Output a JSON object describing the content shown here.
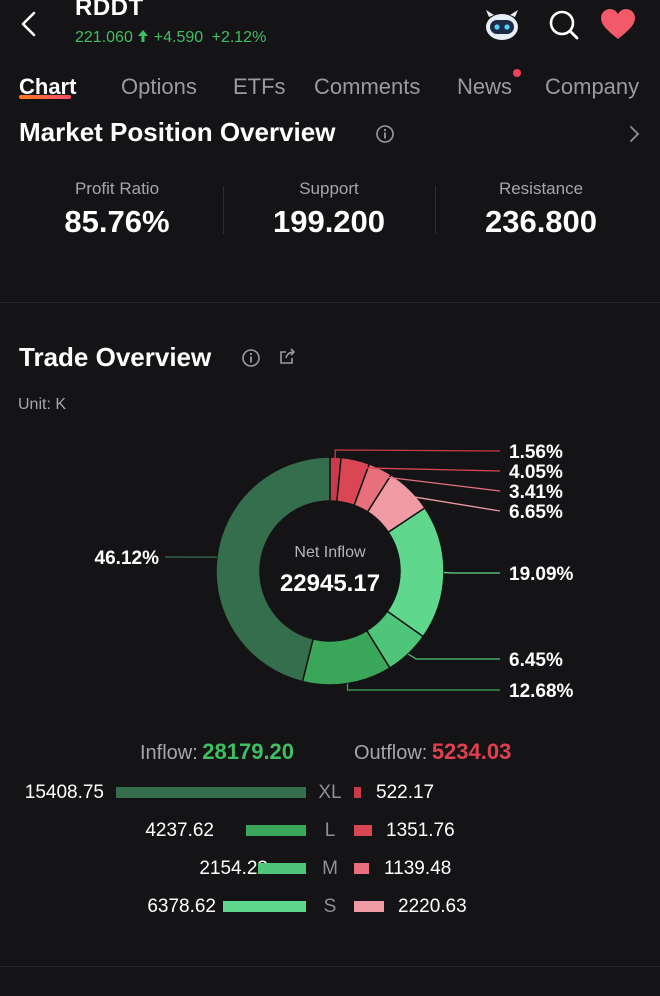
{
  "header": {
    "ticker": "RDDT",
    "price": "221.060",
    "change": "+4.590",
    "change_pct": "+2.12%",
    "colors": {
      "up": "#3fbf62",
      "heart": "#f25a6a"
    },
    "icons": [
      "back-arrow-icon",
      "up-arrow-icon",
      "robot-assistant-icon",
      "search-icon",
      "heart-icon"
    ]
  },
  "tabs": [
    {
      "label": "Chart",
      "active": true
    },
    {
      "label": "Options",
      "active": false
    },
    {
      "label": "ETFs",
      "active": false
    },
    {
      "label": "Comments",
      "active": false
    },
    {
      "label": "News",
      "active": false,
      "has_dot": true
    },
    {
      "label": "Company",
      "active": false
    }
  ],
  "market_position": {
    "title": "Market Position Overview",
    "stats": [
      {
        "label": "Profit Ratio",
        "value": "85.76%"
      },
      {
        "label": "Support",
        "value": "199.200"
      },
      {
        "label": "Resistance",
        "value": "236.800"
      }
    ]
  },
  "trade_overview": {
    "title": "Trade Overview",
    "unit": "Unit: K",
    "center_label": "Net Inflow",
    "center_value": "22945.17"
  },
  "chart_data": {
    "type": "pie",
    "slices": [
      {
        "label": "1.56%",
        "value": 1.56,
        "color": "#c93b48"
      },
      {
        "label": "4.05%",
        "value": 4.05,
        "color": "#d94654"
      },
      {
        "label": "3.41%",
        "value": 3.41,
        "color": "#e8707c"
      },
      {
        "label": "6.65%",
        "value": 6.65,
        "color": "#f09aa3"
      },
      {
        "label": "19.09%",
        "value": 19.09,
        "color": "#5fd88e"
      },
      {
        "label": "6.45%",
        "value": 6.45,
        "color": "#4fc57a"
      },
      {
        "label": "12.68%",
        "value": 12.68,
        "color": "#3aa65a"
      },
      {
        "label": "46.12%",
        "value": 46.12,
        "color": "#356e4c"
      }
    ]
  },
  "flows": {
    "inflow_label": "Inflow:",
    "inflow_value": "28179.20",
    "outflow_label": "Outflow:",
    "outflow_value": "5234.03",
    "colors": {
      "inflow": "#3fbf62",
      "outflow": "#e0404e"
    },
    "rows": [
      {
        "category": "XL",
        "inflow": "15408.75",
        "outflow": "522.17",
        "inflow_color": "#356e4c",
        "outflow_color": "#c93b48"
      },
      {
        "category": "L",
        "inflow": "4237.62",
        "outflow": "1351.76",
        "inflow_color": "#3aa65a",
        "outflow_color": "#d94654"
      },
      {
        "category": "M",
        "inflow": "2154.23",
        "outflow": "1139.48",
        "inflow_color": "#4fc57a",
        "outflow_color": "#e8707c"
      },
      {
        "category": "S",
        "inflow": "6378.62",
        "outflow": "2220.63",
        "inflow_color": "#5fd88e",
        "outflow_color": "#f09aa3"
      }
    ]
  }
}
